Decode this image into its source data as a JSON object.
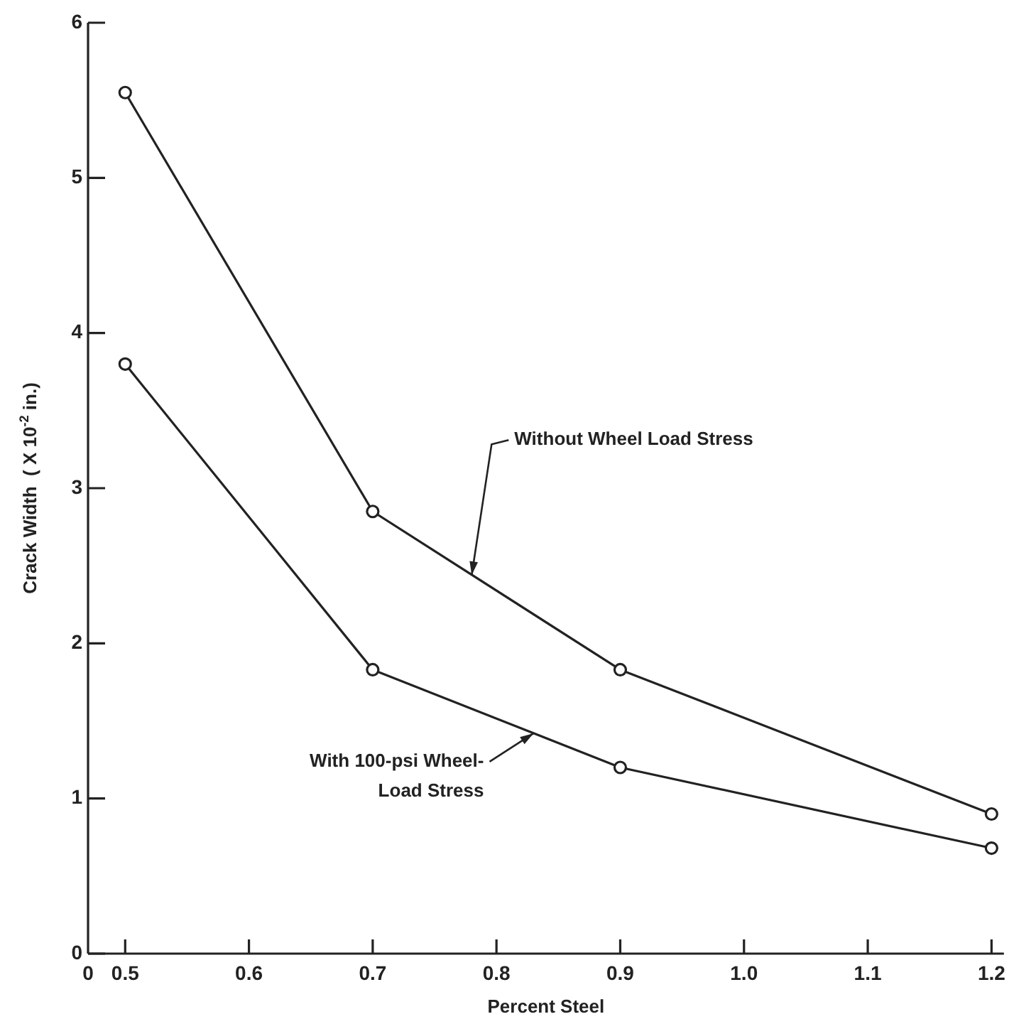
{
  "chart_data": {
    "type": "line",
    "xlabel": "Percent Steel",
    "ylabel": "Crack Width  ( X 10$^{-2}$ in.)",
    "x": [
      0.5,
      0.7,
      0.9,
      1.2
    ],
    "series": [
      {
        "color": "#222222",
        "values": [
          5.55,
          2.85,
          1.83,
          0.9
        ]
      },
      {
        "color": "#222222",
        "values": [
          3.8,
          1.83,
          1.2,
          0.68
        ]
      }
    ],
    "xlim": [
      0.47,
      1.21
    ],
    "xticks": [
      {
        "value": 0.47,
        "label": "0"
      },
      0.5,
      0.6,
      0.7,
      0.8,
      0.9,
      {
        "value": 1.0,
        "label": "1.0"
      },
      1.1,
      1.2
    ],
    "ylim": [
      0,
      6
    ],
    "yticks": [
      0,
      1,
      2,
      3,
      4,
      5,
      6
    ],
    "annotations": [
      {
        "text": "Without Wheel Load Stress",
        "x": 0.78,
        "y": 2.44
      },
      {
        "text": "With 100-psi Wheel-\nLoad Stress",
        "x": 0.83,
        "y": 1.42
      }
    ],
    "grid": false,
    "legend": false,
    "marker": "circle",
    "line_style": "solid"
  }
}
